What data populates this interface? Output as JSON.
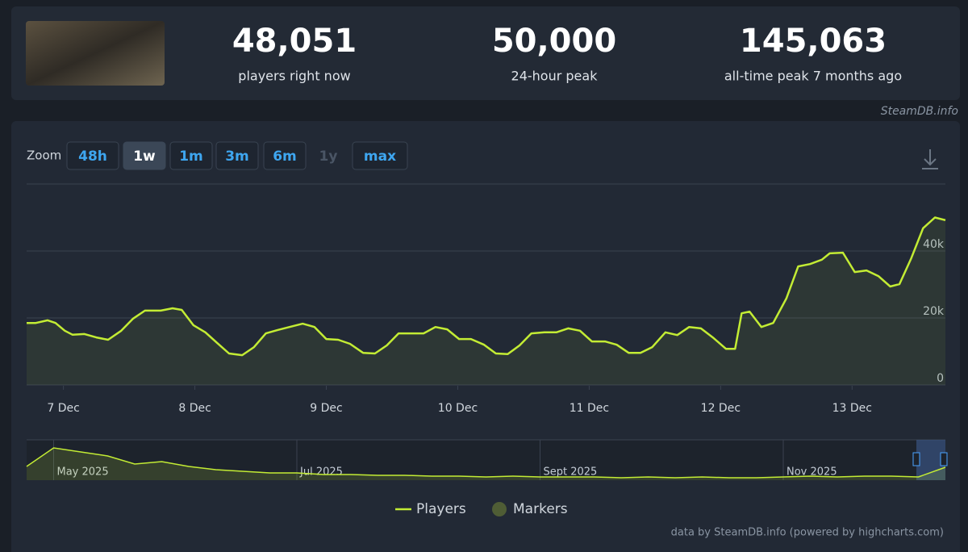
{
  "header": {
    "stats": [
      {
        "value": "48,051",
        "label": "players right now"
      },
      {
        "value": "50,000",
        "label": "24-hour peak"
      },
      {
        "value": "145,063",
        "label": "all-time peak 7 months ago"
      }
    ],
    "source": "SteamDB.info"
  },
  "zoom": {
    "label": "Zoom",
    "buttons": [
      "48h",
      "1w",
      "1m",
      "3m",
      "6m",
      "1y",
      "max"
    ],
    "active_index": 1,
    "disabled_index": 5
  },
  "chart_data": [
    {
      "type": "line",
      "x": [
        6.72,
        6.79,
        6.88,
        6.94,
        7.01,
        7.07,
        7.16,
        7.25,
        7.34,
        7.44,
        7.53,
        7.62,
        7.74,
        7.83,
        7.9,
        7.99,
        8.08,
        8.17,
        8.26,
        8.36,
        8.45,
        8.54,
        8.63,
        8.72,
        8.82,
        8.91,
        9.0,
        9.09,
        9.18,
        9.28,
        9.37,
        9.46,
        9.55,
        9.64,
        9.74,
        9.83,
        9.92,
        10.01,
        10.1,
        10.2,
        10.29,
        10.38,
        10.47,
        10.56,
        10.66,
        10.75,
        10.84,
        10.93,
        11.02,
        11.12,
        11.21,
        11.3,
        11.39,
        11.48,
        11.58,
        11.67,
        11.76,
        11.85,
        11.94,
        12.04,
        12.11,
        12.16,
        12.22,
        12.31,
        12.4,
        12.5,
        12.59,
        12.68,
        12.77,
        12.83,
        12.93,
        13.02,
        13.11,
        13.2,
        13.29,
        13.36,
        13.45,
        13.54,
        13.63,
        13.71
      ],
      "series": [
        {
          "name": "Players",
          "color": "#c3ec34",
          "values": [
            18500,
            18500,
            19300,
            18500,
            16200,
            15000,
            15200,
            14200,
            13500,
            16200,
            19800,
            22200,
            22200,
            22900,
            22400,
            17800,
            15700,
            12500,
            9400,
            8900,
            11300,
            15400,
            16400,
            17300,
            18300,
            17300,
            13700,
            13500,
            12300,
            9600,
            9400,
            11800,
            15400,
            15400,
            15400,
            17300,
            16600,
            13700,
            13700,
            12000,
            9400,
            9200,
            11800,
            15400,
            15700,
            15700,
            16900,
            16200,
            13000,
            13000,
            12000,
            9600,
            9600,
            11300,
            15700,
            14900,
            17300,
            16900,
            14200,
            10800,
            10800,
            21400,
            21900,
            17300,
            18500,
            25800,
            35400,
            36100,
            37400,
            39300,
            39500,
            33700,
            34200,
            32500,
            29400,
            30100,
            37800,
            46800,
            50000,
            49200
          ]
        }
      ],
      "markers": {
        "name": "Markers",
        "color": "#4f5d35"
      },
      "xlim": [
        6.72,
        13.71
      ],
      "xticks": [
        {
          "value": 7,
          "label": "7 Dec"
        },
        {
          "value": 8,
          "label": "8 Dec"
        },
        {
          "value": 9,
          "label": "9 Dec"
        },
        {
          "value": 10,
          "label": "10 Dec"
        },
        {
          "value": 11,
          "label": "11 Dec"
        },
        {
          "value": 12,
          "label": "12 Dec"
        },
        {
          "value": 13,
          "label": "13 Dec"
        }
      ],
      "ylim": [
        0,
        60000
      ],
      "yticks": [
        0,
        {
          "value": 20000,
          "label": "20k"
        },
        {
          "value": 40000,
          "label": "40k"
        }
      ],
      "grid": true
    },
    {
      "type": "area",
      "categories": [
        null,
        "May 2025",
        null,
        null,
        null,
        null,
        null,
        null,
        null,
        null,
        "Jul 2025",
        null,
        null,
        null,
        null,
        null,
        null,
        null,
        null,
        "Sept 2025",
        null,
        null,
        null,
        null,
        null,
        null,
        null,
        null,
        "Nov 2025",
        null,
        null,
        null,
        null,
        null,
        null
      ],
      "values": [
        51000,
        120000,
        105000,
        90000,
        60000,
        69000,
        51000,
        39000,
        33000,
        27000,
        27000,
        21000,
        21000,
        18000,
        18000,
        15000,
        15000,
        12000,
        15000,
        12000,
        12000,
        12000,
        9000,
        12000,
        9000,
        12000,
        9000,
        9000,
        12000,
        15000,
        12000,
        15000,
        15000,
        12000,
        48000
      ],
      "color": "#c3ec34",
      "ylim": [
        0,
        150000
      ]
    }
  ],
  "footer": "data by SteamDB.info (powered by highcharts.com)"
}
